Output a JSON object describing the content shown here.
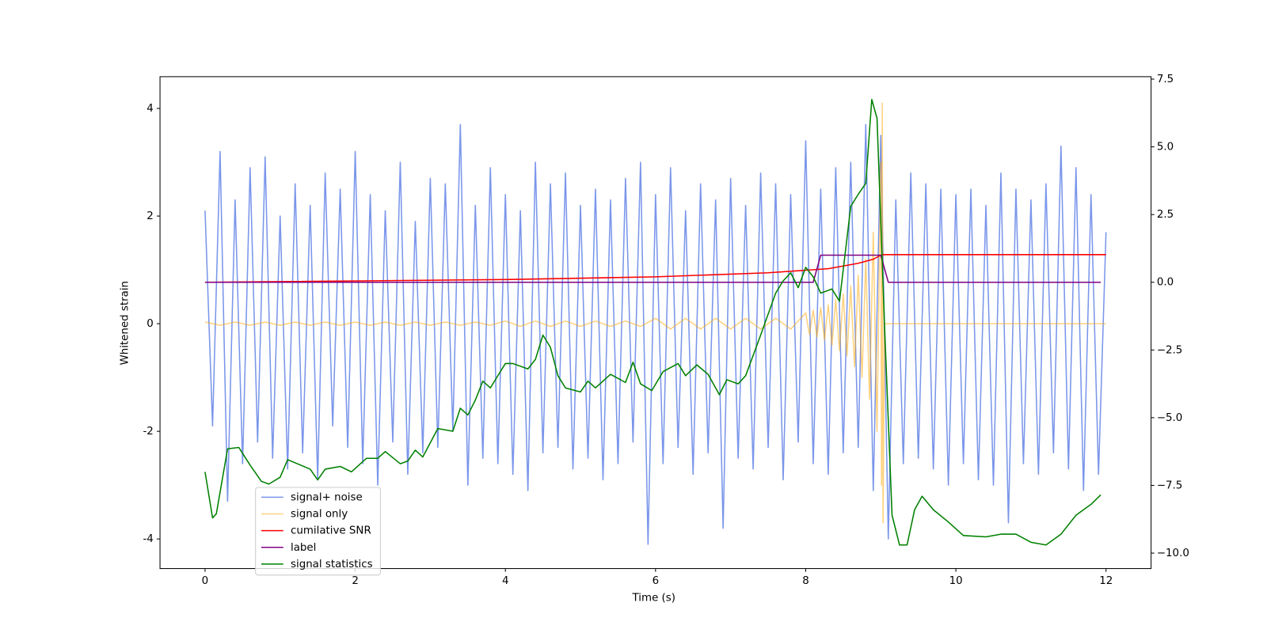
{
  "chart_data": {
    "type": "line",
    "xlabel": "Time (s)",
    "ylabel": "Whitened strain",
    "xlim": [
      -0.6,
      12.6
    ],
    "xticks": [
      0,
      2,
      4,
      6,
      8,
      10,
      12
    ],
    "ylim": [
      -4.55,
      4.59
    ],
    "yticks": [
      -4,
      -2,
      0,
      2,
      4
    ],
    "y2lim": [
      -10.57,
      7.59
    ],
    "y2ticks": [
      {
        "value": -10,
        "label": "−10.0"
      },
      {
        "value": -7.5,
        "label": "−7.5"
      },
      {
        "value": -5,
        "label": "−5.0"
      },
      {
        "value": -2.5,
        "label": "−2.5"
      },
      {
        "value": 0,
        "label": "0.0"
      },
      {
        "value": 2.5,
        "label": "2.5"
      },
      {
        "value": 5,
        "label": "5.0"
      },
      {
        "value": 7.5,
        "label": "7.5"
      }
    ],
    "legend": "lower left",
    "series": [
      {
        "name": "signal+ noise",
        "color": "royalblue",
        "opacity": 0.7,
        "x": [
          0,
          0.1,
          0.2,
          0.3,
          0.4,
          0.5,
          0.6,
          0.7,
          0.8,
          0.9,
          1,
          1.1,
          1.2,
          1.3,
          1.4,
          1.5,
          1.6,
          1.7,
          1.8,
          1.9,
          2,
          2.1,
          2.2,
          2.3,
          2.4,
          2.5,
          2.6,
          2.7,
          2.8,
          2.9,
          3,
          3.1,
          3.2,
          3.3,
          3.4,
          3.5,
          3.6,
          3.7,
          3.8,
          3.9,
          4,
          4.1,
          4.2,
          4.3,
          4.4,
          4.5,
          4.6,
          4.7,
          4.8,
          4.9,
          5,
          5.1,
          5.2,
          5.3,
          5.4,
          5.5,
          5.6,
          5.7,
          5.8,
          5.9,
          6,
          6.1,
          6.2,
          6.3,
          6.4,
          6.5,
          6.6,
          6.7,
          6.8,
          6.9,
          7,
          7.1,
          7.2,
          7.3,
          7.4,
          7.5,
          7.6,
          7.7,
          7.8,
          7.9,
          8,
          8.1,
          8.2,
          8.3,
          8.4,
          8.5,
          8.6,
          8.7,
          8.8,
          8.9,
          9,
          9.1,
          9.2,
          9.3,
          9.4,
          9.5,
          9.6,
          9.7,
          9.8,
          9.9,
          10,
          10.1,
          10.2,
          10.3,
          10.4,
          10.5,
          10.6,
          10.7,
          10.8,
          10.9,
          11,
          11.1,
          11.2,
          11.3,
          11.4,
          11.5,
          11.6,
          11.7,
          11.8,
          11.9,
          12
        ],
        "values": [
          2.1,
          -1.9,
          3.2,
          -3.3,
          2.3,
          -2.6,
          2.9,
          -2.2,
          3.1,
          -2.5,
          2.0,
          -2.7,
          2.6,
          -2.4,
          2.2,
          -2.9,
          2.8,
          -1.9,
          2.5,
          -2.3,
          3.2,
          -2.6,
          2.4,
          -3.0,
          2.1,
          -2.2,
          3.0,
          -2.8,
          1.9,
          -2.4,
          2.7,
          -2.3,
          2.6,
          -2.0,
          3.7,
          -3.0,
          2.2,
          -2.5,
          2.9,
          -2.6,
          2.4,
          -2.8,
          2.1,
          -3.1,
          3.0,
          -2.4,
          2.6,
          -2.3,
          2.8,
          -2.7,
          2.2,
          -2.5,
          2.5,
          -2.9,
          2.3,
          -2.6,
          2.7,
          -2.2,
          3.0,
          -4.1,
          2.4,
          -2.6,
          2.9,
          -2.3,
          2.1,
          -2.8,
          2.6,
          -2.4,
          2.3,
          -3.8,
          2.7,
          -2.5,
          2.2,
          -2.7,
          2.8,
          -2.3,
          2.6,
          -2.9,
          2.4,
          -2.2,
          3.4,
          -2.6,
          2.5,
          -2.8,
          2.9,
          -2.4,
          3.0,
          -2.3,
          3.7,
          -3.1,
          3.5,
          -4.0,
          2.3,
          -2.6,
          2.8,
          -2.5,
          2.6,
          -2.7,
          2.5,
          -3.0,
          2.4,
          -2.6,
          2.5,
          -2.9,
          2.2,
          -3.0,
          2.8,
          -3.7,
          2.5,
          -2.6,
          2.3,
          -2.8,
          2.6,
          -2.4,
          3.3,
          -2.7,
          2.9,
          -3.1,
          2.4,
          -2.8,
          1.7
        ]
      },
      {
        "name": "signal only",
        "color": "orange",
        "opacity": 0.5,
        "x": [
          0,
          0.2,
          0.4,
          0.6,
          0.8,
          1,
          1.2,
          1.4,
          1.6,
          1.8,
          2,
          2.2,
          2.4,
          2.6,
          2.8,
          3,
          3.2,
          3.4,
          3.6,
          3.8,
          4,
          4.2,
          4.4,
          4.6,
          4.8,
          5,
          5.2,
          5.4,
          5.6,
          5.8,
          6,
          6.2,
          6.4,
          6.6,
          6.8,
          7,
          7.2,
          7.4,
          7.6,
          7.8,
          8,
          8.05,
          8.1,
          8.15,
          8.2,
          8.25,
          8.3,
          8.35,
          8.4,
          8.45,
          8.5,
          8.55,
          8.6,
          8.65,
          8.7,
          8.75,
          8.8,
          8.85,
          8.9,
          8.95,
          9,
          9.01,
          9.02,
          9.03,
          9.05,
          12
        ],
        "values": [
          0.03,
          -0.03,
          0.03,
          -0.03,
          0.03,
          -0.03,
          0.03,
          -0.03,
          0.03,
          -0.03,
          0.03,
          -0.03,
          0.03,
          -0.03,
          0.03,
          -0.03,
          0.03,
          -0.03,
          0.03,
          -0.03,
          0.05,
          -0.05,
          0.05,
          -0.05,
          0.05,
          -0.05,
          0.05,
          -0.05,
          0.05,
          -0.05,
          0.1,
          -0.1,
          0.1,
          -0.1,
          0.1,
          -0.1,
          0.1,
          -0.1,
          0.1,
          -0.1,
          0.2,
          -0.2,
          0.25,
          -0.25,
          0.3,
          -0.3,
          0.35,
          -0.4,
          0.45,
          -0.5,
          0.55,
          -0.6,
          0.7,
          -0.8,
          0.9,
          -1.0,
          1.2,
          -1.4,
          1.7,
          -2.0,
          3.0,
          -3.0,
          4.1,
          -3.7,
          0,
          0
        ]
      },
      {
        "name": "cumilative SNR",
        "color": "red",
        "axis": "y2",
        "x": [
          0,
          4,
          6,
          7.5,
          8.3,
          8.7,
          8.9,
          9.0,
          9.05,
          12
        ],
        "values": [
          0,
          0.1,
          0.2,
          0.35,
          0.5,
          0.7,
          0.85,
          1.0,
          1.02,
          1.02
        ]
      },
      {
        "name": "label",
        "color": "purple",
        "axis": "y2",
        "x": [
          0,
          8.1,
          8.2,
          9.0,
          9.1,
          11.93
        ],
        "values": [
          0,
          0,
          1,
          1,
          0,
          0
        ]
      },
      {
        "name": "signal statistics",
        "color": "green",
        "axis": "y2",
        "x": [
          0,
          0.1,
          0.15,
          0.3,
          0.45,
          0.6,
          0.75,
          0.85,
          1.0,
          1.1,
          1.4,
          1.5,
          1.6,
          1.8,
          1.95,
          2.15,
          2.3,
          2.4,
          2.6,
          2.7,
          2.8,
          2.9,
          3.1,
          3.3,
          3.4,
          3.5,
          3.6,
          3.7,
          3.8,
          4.0,
          4.1,
          4.3,
          4.4,
          4.5,
          4.6,
          4.7,
          4.8,
          5.0,
          5.1,
          5.2,
          5.4,
          5.6,
          5.7,
          5.8,
          5.95,
          6.1,
          6.3,
          6.4,
          6.55,
          6.7,
          6.85,
          6.95,
          7.1,
          7.2,
          7.4,
          7.6,
          7.7,
          7.8,
          7.9,
          8.0,
          8.1,
          8.2,
          8.35,
          8.45,
          8.6,
          8.7,
          8.8,
          8.88,
          8.95,
          9.05,
          9.15,
          9.25,
          9.35,
          9.45,
          9.55,
          9.7,
          9.9,
          10.1,
          10.4,
          10.6,
          10.8,
          11.0,
          11.2,
          11.4,
          11.6,
          11.8,
          11.93
        ],
        "values": [
          -7.0,
          -8.7,
          -8.55,
          -6.15,
          -6.1,
          -6.75,
          -7.35,
          -7.45,
          -7.2,
          -6.55,
          -6.9,
          -7.3,
          -6.9,
          -6.8,
          -7.0,
          -6.5,
          -6.5,
          -6.25,
          -6.7,
          -6.6,
          -6.2,
          -6.45,
          -5.4,
          -5.5,
          -4.65,
          -4.9,
          -4.35,
          -3.65,
          -3.9,
          -3.0,
          -3.0,
          -3.2,
          -2.85,
          -1.95,
          -2.4,
          -3.45,
          -3.9,
          -4.05,
          -3.65,
          -3.9,
          -3.4,
          -3.7,
          -2.95,
          -3.75,
          -4.0,
          -3.3,
          -3.0,
          -3.45,
          -3.05,
          -3.4,
          -4.15,
          -3.6,
          -3.75,
          -3.45,
          -1.95,
          -0.4,
          0.05,
          0.35,
          -0.2,
          0.55,
          0.2,
          -0.4,
          -0.25,
          -0.7,
          2.8,
          3.25,
          3.65,
          6.75,
          6.05,
          -1.6,
          -8.6,
          -9.7,
          -9.7,
          -8.4,
          -7.9,
          -8.4,
          -8.85,
          -9.35,
          -9.4,
          -9.3,
          -9.3,
          -9.6,
          -9.7,
          -9.3,
          -8.6,
          -8.2,
          -7.85
        ]
      }
    ]
  }
}
